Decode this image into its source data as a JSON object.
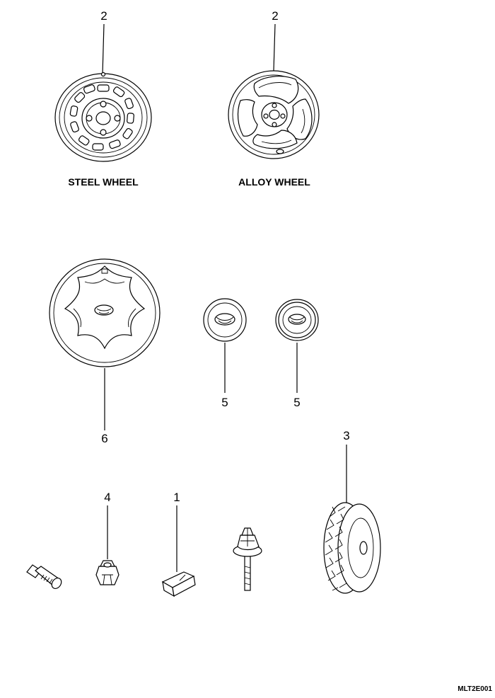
{
  "callouts": {
    "steel_wheel": "2",
    "alloy_wheel": "2",
    "wheel_cover": "6",
    "center_cap_left": "5",
    "center_cap_right": "5",
    "tire": "3",
    "wheel_nut": "4",
    "balance_weight": "1"
  },
  "captions": {
    "steel_wheel": "STEEL WHEEL",
    "alloy_wheel": "ALLOY WHEEL"
  },
  "figure_code": "MLT2E001"
}
